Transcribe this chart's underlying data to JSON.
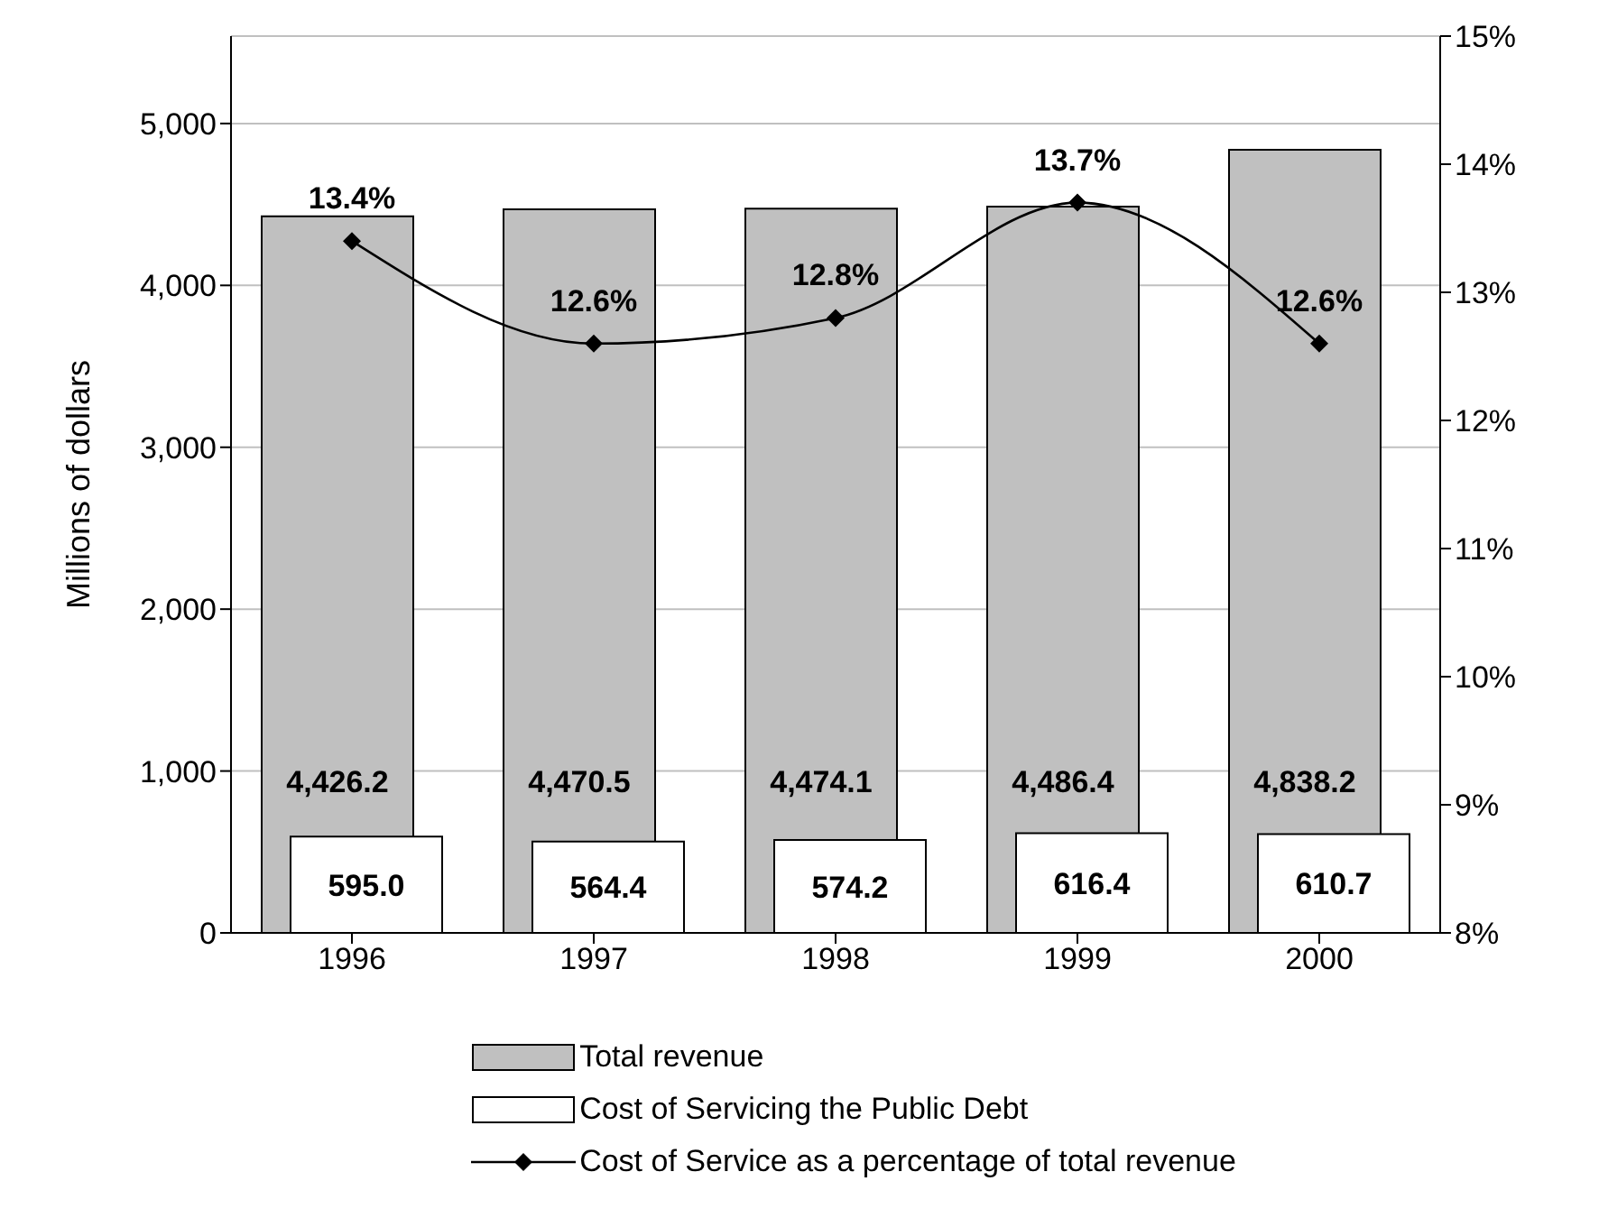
{
  "chart_data": {
    "type": "bar",
    "categories": [
      "1996",
      "1997",
      "1998",
      "1999",
      "2000"
    ],
    "ylabel": "Millions of dollars",
    "ylim": [
      0,
      5540
    ],
    "yticks": [
      {
        "value": 0,
        "label": "0"
      },
      {
        "value": 1000,
        "label": "1,000"
      },
      {
        "value": 2000,
        "label": "2,000"
      },
      {
        "value": 3000,
        "label": "3,000"
      },
      {
        "value": 4000,
        "label": "4,000"
      },
      {
        "value": 5000,
        "label": "5,000"
      }
    ],
    "y2lim": [
      8,
      15
    ],
    "y2ticks": [
      {
        "value": 8,
        "label": "8%"
      },
      {
        "value": 9,
        "label": "9%"
      },
      {
        "value": 10,
        "label": "10%"
      },
      {
        "value": 11,
        "label": "11%"
      },
      {
        "value": 12,
        "label": "12%"
      },
      {
        "value": 13,
        "label": "13%"
      },
      {
        "value": 14,
        "label": "14%"
      },
      {
        "value": 15,
        "label": "15%"
      }
    ],
    "series": [
      {
        "name": "Total revenue",
        "color": "#c0c0c0",
        "values": [
          4426.2,
          4470.5,
          4474.1,
          4486.4,
          4838.2
        ],
        "value_labels": [
          "4,426.2",
          "4,470.5",
          "4,474.1",
          "4,486.4",
          "4,838.2"
        ]
      },
      {
        "name": "Cost of Servicing the Public Debt",
        "color": "#ffffff",
        "values": [
          595.0,
          564.4,
          574.2,
          616.4,
          610.7
        ],
        "value_labels": [
          "595.0",
          "564.4",
          "574.2",
          "616.4",
          "610.7"
        ]
      },
      {
        "name": "Cost of Service as a percentage of total revenue",
        "type": "line",
        "axis": "y2",
        "color": "#000000",
        "marker": "diamond",
        "values": [
          13.4,
          12.6,
          12.8,
          13.7,
          12.6
        ],
        "value_labels": [
          "13.4%",
          "12.6%",
          "12.8%",
          "13.7%",
          "12.6%"
        ]
      }
    ],
    "grid": "y",
    "legend": "bottom"
  }
}
